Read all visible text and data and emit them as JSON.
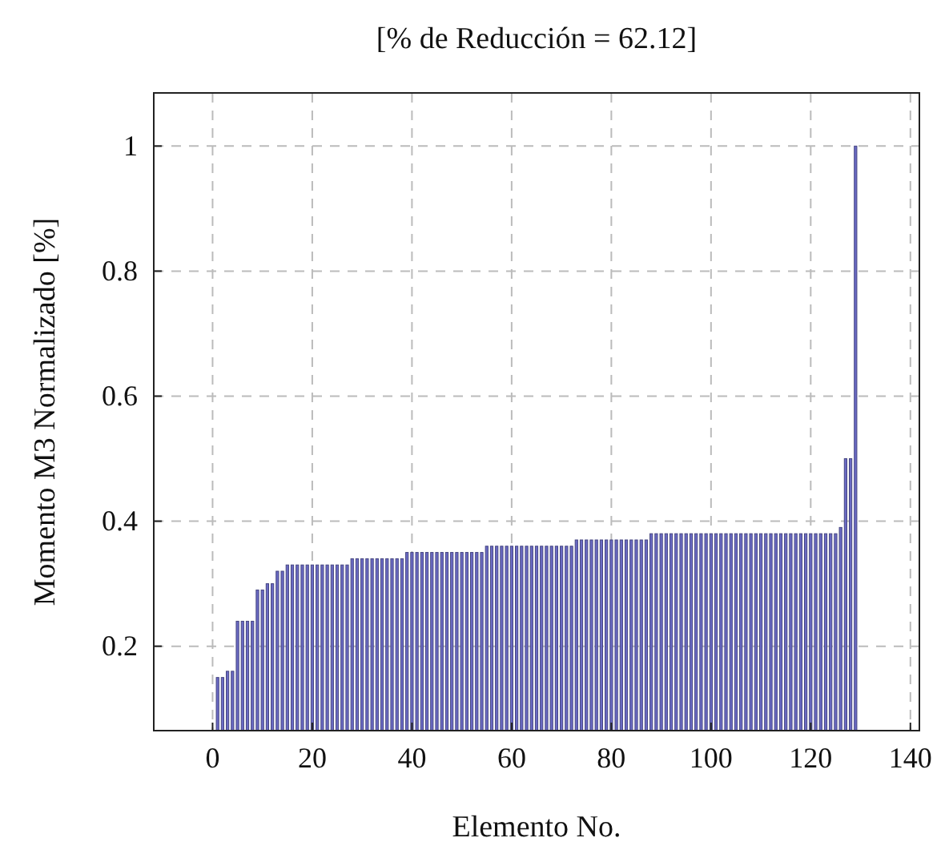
{
  "chart_data": {
    "type": "bar",
    "title": "[% de Reducción = 62.12]",
    "xlabel": "Elemento No.",
    "ylabel": "Momento M3 Normalizado [%]",
    "x": [
      1,
      2,
      3,
      4,
      5,
      6,
      7,
      8,
      9,
      10,
      11,
      12,
      13,
      14,
      15,
      16,
      17,
      18,
      19,
      20,
      21,
      22,
      23,
      24,
      25,
      26,
      27,
      28,
      29,
      30,
      31,
      32,
      33,
      34,
      35,
      36,
      37,
      38,
      39,
      40,
      41,
      42,
      43,
      44,
      45,
      46,
      47,
      48,
      49,
      50,
      51,
      52,
      53,
      54,
      55,
      56,
      57,
      58,
      59,
      60,
      61,
      62,
      63,
      64,
      65,
      66,
      67,
      68,
      69,
      70,
      71,
      72,
      73,
      74,
      75,
      76,
      77,
      78,
      79,
      80,
      81,
      82,
      83,
      84,
      85,
      86,
      87,
      88,
      89,
      90,
      91,
      92,
      93,
      94,
      95,
      96,
      97,
      98,
      99,
      100,
      101,
      102,
      103,
      104,
      105,
      106,
      107,
      108,
      109,
      110,
      111,
      112,
      113,
      114,
      115,
      116,
      117,
      118,
      119,
      120,
      121,
      122,
      123,
      124,
      125,
      126,
      127,
      128,
      129
    ],
    "values": [
      0.15,
      0.15,
      0.16,
      0.16,
      0.24,
      0.24,
      0.24,
      0.24,
      0.29,
      0.29,
      0.3,
      0.3,
      0.32,
      0.32,
      0.33,
      0.33,
      0.33,
      0.33,
      0.33,
      0.33,
      0.33,
      0.33,
      0.33,
      0.33,
      0.33,
      0.33,
      0.33,
      0.34,
      0.34,
      0.34,
      0.34,
      0.34,
      0.34,
      0.34,
      0.34,
      0.34,
      0.34,
      0.34,
      0.35,
      0.35,
      0.35,
      0.35,
      0.35,
      0.35,
      0.35,
      0.35,
      0.35,
      0.35,
      0.35,
      0.35,
      0.35,
      0.35,
      0.35,
      0.35,
      0.36,
      0.36,
      0.36,
      0.36,
      0.36,
      0.36,
      0.36,
      0.36,
      0.36,
      0.36,
      0.36,
      0.36,
      0.36,
      0.36,
      0.36,
      0.36,
      0.36,
      0.36,
      0.37,
      0.37,
      0.37,
      0.37,
      0.37,
      0.37,
      0.37,
      0.37,
      0.37,
      0.37,
      0.37,
      0.37,
      0.37,
      0.37,
      0.37,
      0.38,
      0.38,
      0.38,
      0.38,
      0.38,
      0.38,
      0.38,
      0.38,
      0.38,
      0.38,
      0.38,
      0.38,
      0.38,
      0.38,
      0.38,
      0.38,
      0.38,
      0.38,
      0.38,
      0.38,
      0.38,
      0.38,
      0.38,
      0.38,
      0.38,
      0.38,
      0.38,
      0.38,
      0.38,
      0.38,
      0.38,
      0.38,
      0.38,
      0.38,
      0.38,
      0.38,
      0.38,
      0.38,
      0.39,
      0.5,
      0.5,
      1
    ],
    "color": "#6a6ac4",
    "xlim": [
      -11.8,
      141.8
    ],
    "xticks": [
      0,
      20,
      40,
      60,
      80,
      100,
      120,
      140
    ],
    "ylim": [
      0.065,
      1.085
    ],
    "yticks": [
      0.2,
      0.4,
      0.6,
      0.8,
      1
    ],
    "grid": true
  }
}
